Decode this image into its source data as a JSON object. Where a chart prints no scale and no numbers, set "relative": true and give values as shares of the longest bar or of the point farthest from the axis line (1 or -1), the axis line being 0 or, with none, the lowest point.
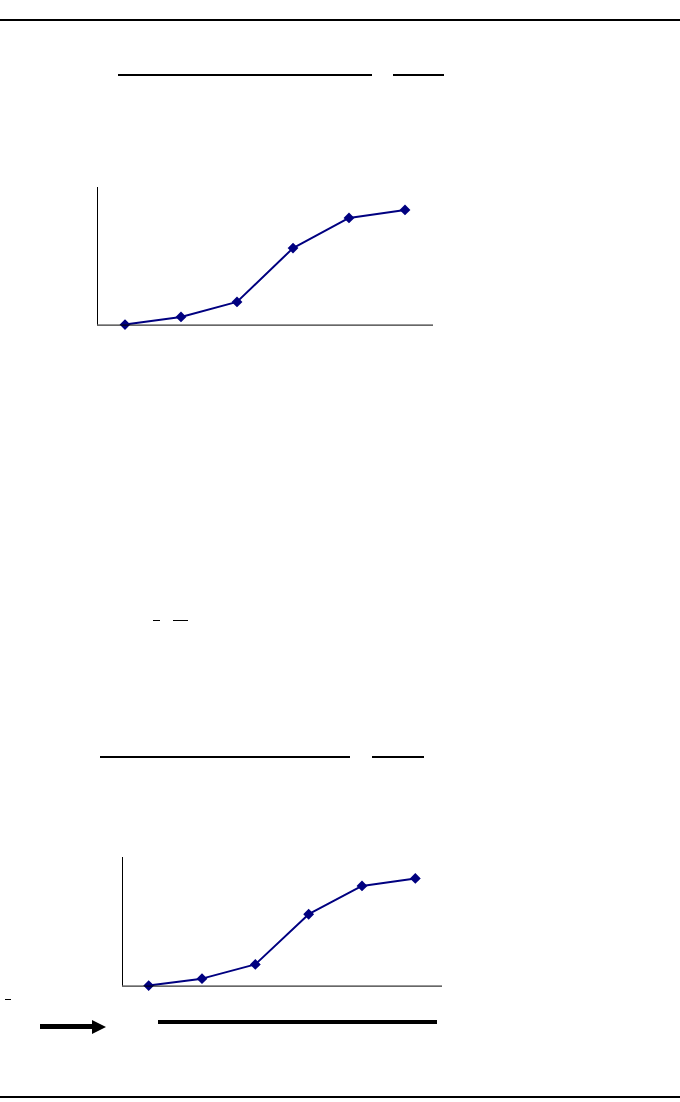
{
  "chart_data": [
    {
      "type": "line",
      "relative": true,
      "categories": [
        null,
        null,
        null,
        null,
        null,
        null
      ],
      "series": [
        {
          "color": "#000080",
          "values": [
            0,
            0.067,
            0.198,
            0.667,
            0.93,
            1
          ]
        }
      ],
      "marker": "diamond",
      "legend": false,
      "grid": false
    },
    {
      "type": "line",
      "relative": true,
      "categories": [
        null,
        null,
        null,
        null,
        null,
        null
      ],
      "series": [
        {
          "color": "#000080",
          "values": [
            0,
            0.065,
            0.198,
            0.666,
            0.93,
            1
          ]
        }
      ],
      "marker": "diamond",
      "legend": false,
      "grid": false
    }
  ]
}
